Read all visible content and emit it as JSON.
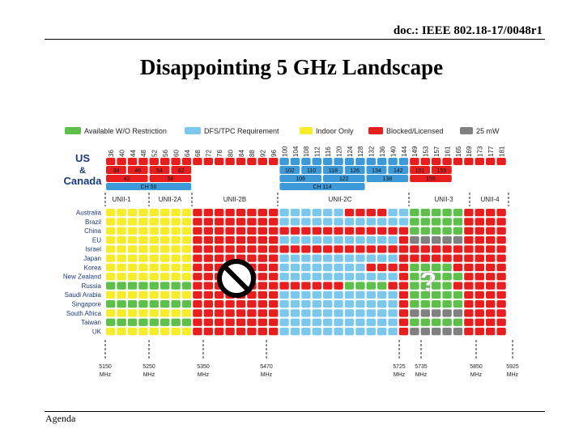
{
  "header": {
    "doc_id": "doc.: IEEE 802.18-17/0048r1"
  },
  "slide": {
    "title": "Disappointing 5 GHz Landscape"
  },
  "footer": {
    "label": "Agenda"
  },
  "legend": [
    {
      "label": "Available W/O Restriction",
      "color": "#5cc04a"
    },
    {
      "label": "DFS/TPC Requirement",
      "color": "#7cc8ec"
    },
    {
      "label": "Indoor Only",
      "color": "#f7ec2a"
    },
    {
      "label": "Blocked/Licensed",
      "color": "#e81e1e"
    },
    {
      "label": "25 mW",
      "color": "#808080"
    }
  ],
  "channels": [
    "36",
    "40",
    "44",
    "48",
    "52",
    "56",
    "60",
    "64",
    "68",
    "72",
    "76",
    "80",
    "84",
    "88",
    "92",
    "96",
    "100",
    "104",
    "108",
    "112",
    "116",
    "120",
    "124",
    "128",
    "132",
    "136",
    "140",
    "144",
    "149",
    "153",
    "157",
    "161",
    "165",
    "169",
    "173",
    "177",
    "181"
  ],
  "us_region_lines": [
    "US",
    "&",
    "Canada"
  ],
  "width40": [
    "38",
    "46",
    "54",
    "62",
    "102",
    "110",
    "118",
    "126",
    "134",
    "142",
    "151",
    "159"
  ],
  "width80": [
    "42",
    "58",
    "106",
    "122",
    "138",
    "155"
  ],
  "width160": [
    "CH 50",
    "CH 114"
  ],
  "bands": [
    "UNII-1",
    "UNII-2A",
    "UNII-2B",
    "UNII-2C",
    "UNII-3",
    "UNII-4"
  ],
  "countries": [
    "Australia",
    "Brazil",
    "China",
    "EU",
    "Israel",
    "Japan",
    "Korea",
    "New Zealand",
    "Russia",
    "Saudi Arabia",
    "Singapore",
    "South Africa",
    "Taiwan",
    "UK"
  ],
  "freq_labels": [
    {
      "mhz": "5150",
      "unit": "MHz"
    },
    {
      "mhz": "5250",
      "unit": "MHz"
    },
    {
      "mhz": "5350",
      "unit": "MHz"
    },
    {
      "mhz": "5470",
      "unit": "MHz"
    },
    {
      "mhz": "5725",
      "unit": "MHz"
    },
    {
      "mhz": "5735",
      "unit": "MHz"
    },
    {
      "mhz": "5850",
      "unit": "MHz"
    },
    {
      "mhz": "5925",
      "unit": "MHz"
    }
  ],
  "annotation_question": "?",
  "colors": {
    "green": "#5cc04a",
    "blue": "#7cc8ec",
    "yellow": "#f7ec2a",
    "red": "#e81e1e",
    "gray": "#808080",
    "us_blue": "#3d9ad8"
  }
}
